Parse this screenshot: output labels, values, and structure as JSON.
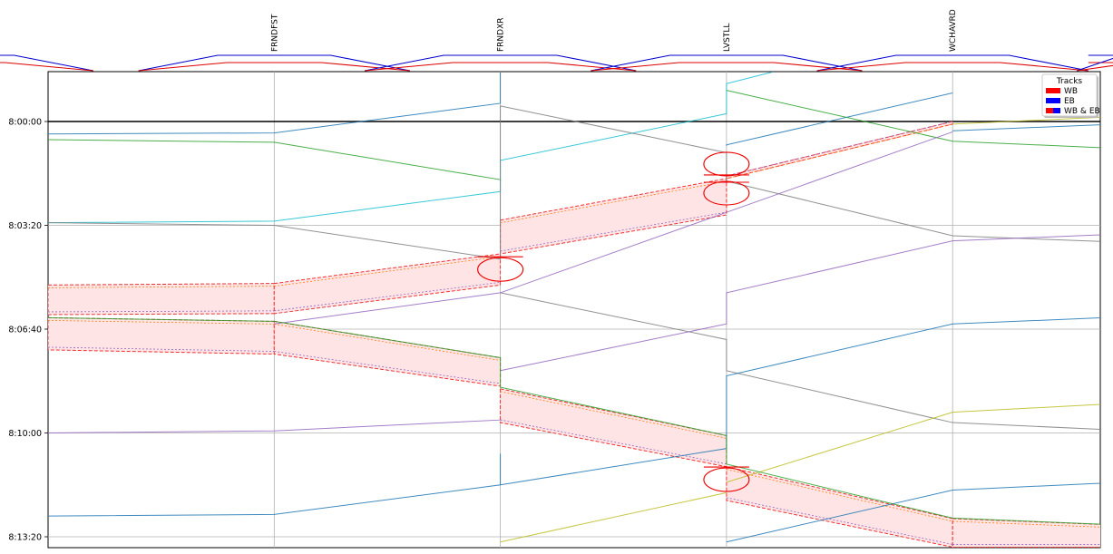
{
  "chart_data": {
    "type": "line",
    "x_kind": "station",
    "stations": [
      "",
      "FRNDFST",
      "FRNDXR",
      "LVSTLL",
      "WCHAVRD",
      ""
    ],
    "y_ticks": [
      "8:00:00",
      "8:03:20",
      "8:06:40",
      "8:10:00",
      "8:13:20"
    ],
    "y_tick_seconds": [
      0,
      200,
      400,
      600,
      800
    ],
    "y_range_seconds": [
      -95,
      820
    ],
    "now_line_seconds": 0,
    "grid": true,
    "legend": {
      "title": "Tracks",
      "placement": "top-right",
      "entries": [
        {
          "label": "WB",
          "colors": [
            "#ff0000"
          ]
        },
        {
          "label": "EB",
          "colors": [
            "#0000ff"
          ]
        },
        {
          "label": "WB & EB",
          "colors": [
            "#ff0000",
            "#0000ff"
          ]
        }
      ]
    },
    "track_diagram": [
      {
        "x": [
          -0.6,
          -0.15,
          0.2
        ],
        "track": "EB"
      },
      {
        "x": [
          -0.6,
          0.2
        ],
        "track": "WB"
      },
      {
        "x": [
          0.4,
          0.75,
          1.25,
          1.6
        ],
        "track": "both"
      },
      {
        "x": [
          1.4,
          1.75,
          2.25,
          2.6
        ],
        "track": "both"
      },
      {
        "x": [
          2.4,
          2.75,
          3.25,
          3.6
        ],
        "track": "both"
      },
      {
        "x": [
          3.4,
          3.75,
          4.25,
          4.6
        ],
        "track": "both"
      },
      {
        "x": [
          4.6,
          4.75,
          5.0
        ],
        "track": "EB"
      }
    ],
    "series": [
      {
        "color": "#1f77b4",
        "points": [
          [
            0,
            24
          ],
          [
            1,
            22
          ],
          [
            2,
            -35
          ],
          [
            2,
            -95
          ]
        ]
      },
      {
        "color": "#2ca02c",
        "points": [
          [
            0,
            35
          ],
          [
            1,
            40
          ],
          [
            2,
            112
          ],
          [
            2,
            115
          ]
        ]
      },
      {
        "color": "#17becf",
        "points": [
          [
            0,
            195
          ],
          [
            1,
            192
          ],
          [
            2,
            135
          ],
          [
            2,
            75
          ],
          [
            3,
            -15
          ],
          [
            3,
            -73
          ],
          [
            3.2,
            -95
          ]
        ]
      },
      {
        "color": "#7f7f7f",
        "points": [
          [
            0,
            195
          ],
          [
            1,
            200
          ],
          [
            2,
            265
          ],
          [
            2,
            -30
          ],
          [
            3,
            60
          ],
          [
            3,
            115
          ],
          [
            4,
            220
          ],
          [
            5,
            237
          ]
        ]
      },
      {
        "color": "#1f77b4",
        "points": [
          [
            3,
            47
          ],
          [
            3,
            45
          ],
          [
            4,
            -55
          ]
        ]
      },
      {
        "color": "#2ca02c",
        "points": [
          [
            3,
            -60
          ],
          [
            4,
            38
          ],
          [
            5,
            57
          ]
        ]
      },
      {
        "color": "#bcbd22",
        "points": [
          [
            4,
            5
          ],
          [
            5,
            -15
          ]
        ]
      },
      {
        "color": "#1f77b4",
        "points": [
          [
            4,
            18
          ],
          [
            5,
            0
          ]
        ]
      },
      {
        "color": "#7f7f7f",
        "points": [
          [
            2,
            330
          ],
          [
            3,
            420
          ],
          [
            3,
            480
          ],
          [
            4,
            580
          ],
          [
            5,
            600
          ]
        ]
      },
      {
        "color": "#9467bd",
        "points": [
          [
            2,
            480
          ],
          [
            3,
            390
          ],
          [
            3,
            330
          ],
          [
            4,
            230
          ],
          [
            5,
            212
          ]
        ]
      },
      {
        "color": "#9467bd",
        "points": [
          [
            0,
            600
          ],
          [
            1,
            596
          ],
          [
            2,
            575
          ]
        ]
      },
      {
        "color": "#1f77b4",
        "points": [
          [
            2,
            700
          ],
          [
            3,
            630
          ],
          [
            3,
            490
          ],
          [
            4,
            390
          ],
          [
            5,
            372
          ]
        ]
      },
      {
        "color": "#bcbd22",
        "points": [
          [
            3,
            695
          ],
          [
            4,
            560
          ],
          [
            5,
            537
          ]
        ]
      },
      {
        "color": "#1f77b4",
        "points": [
          [
            0,
            760
          ],
          [
            1,
            757
          ],
          [
            2,
            700
          ],
          [
            2,
            640
          ]
        ]
      },
      {
        "color": "#bcbd22",
        "points": [
          [
            2,
            810
          ],
          [
            3,
            715
          ]
        ]
      },
      {
        "color": "#1f77b4",
        "points": [
          [
            3,
            810
          ],
          [
            4,
            710
          ],
          [
            5,
            690
          ]
        ]
      },
      {
        "color": "#9467bd",
        "points": [
          [
            1,
            390
          ],
          [
            2,
            330
          ],
          [
            3,
            175
          ],
          [
            4,
            20
          ]
        ]
      },
      {
        "color": "#2ca02c",
        "points": [
          [
            0,
            378
          ],
          [
            1,
            385
          ],
          [
            2,
            455
          ],
          [
            2,
            512
          ],
          [
            3,
            605
          ],
          [
            3,
            660
          ],
          [
            4,
            764
          ],
          [
            5,
            782
          ]
        ]
      }
    ],
    "occupancy_bands": [
      {
        "x0": 0,
        "x1": 1,
        "top": [
          315,
          312
        ],
        "bottom": [
          372,
          370
        ]
      },
      {
        "x0": 1,
        "x1": 2,
        "top": [
          312,
          255
        ],
        "bottom": [
          370,
          315
        ]
      },
      {
        "x0": 2,
        "x1": 3,
        "top": [
          190,
          110
        ],
        "bottom": [
          255,
          180
        ]
      },
      {
        "x0": 3,
        "x1": 4,
        "top": [
          105,
          0
        ],
        "bottom": [
          110,
          5
        ]
      },
      {
        "x0": 0,
        "x1": 1,
        "top": [
          378,
          385
        ],
        "bottom": [
          440,
          448
        ]
      },
      {
        "x0": 1,
        "x1": 2,
        "top": [
          385,
          455
        ],
        "bottom": [
          448,
          510
        ]
      },
      {
        "x0": 2,
        "x1": 3,
        "top": [
          515,
          605
        ],
        "bottom": [
          580,
          665
        ]
      },
      {
        "x0": 3,
        "x1": 4,
        "top": [
          665,
          765
        ],
        "bottom": [
          730,
          820
        ]
      },
      {
        "x0": 4,
        "x1": 5,
        "top": [
          765,
          782
        ],
        "bottom": [
          820,
          820
        ]
      }
    ],
    "conflict_markers": [
      {
        "x": 2,
        "y": 285
      },
      {
        "x": 3,
        "y": 82
      },
      {
        "x": 3,
        "y": 138
      },
      {
        "x": 3,
        "y": 690
      }
    ]
  }
}
